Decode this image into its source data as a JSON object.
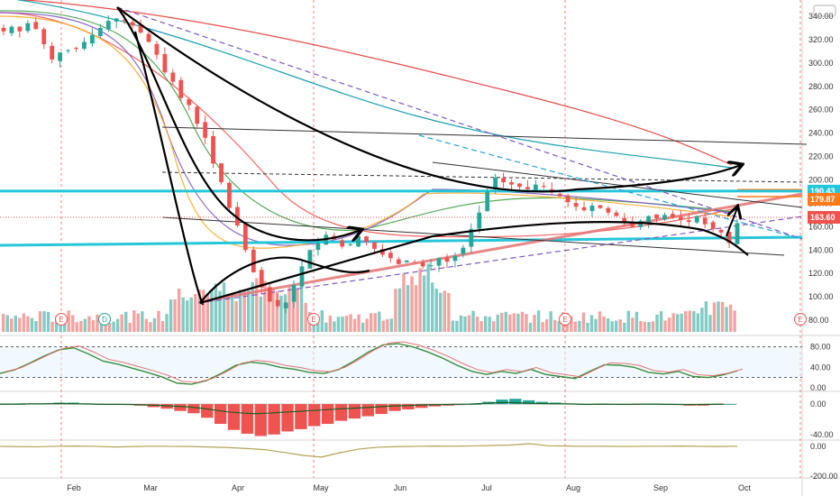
{
  "currency": "USD",
  "chart_data": [
    {
      "type": "candlestick",
      "title": "",
      "ylim": [
        70,
        350
      ],
      "yticks": [
        80,
        100,
        120,
        140,
        160,
        180,
        200,
        220,
        240,
        260,
        280,
        300,
        320,
        340
      ],
      "months": [
        "Feb",
        "Mar",
        "Apr",
        "May",
        "Jun",
        "Jul",
        "Aug",
        "Sep",
        "Oct"
      ],
      "price_tags": [
        {
          "label": "190.43",
          "value": 190.43,
          "color": "#26c6da"
        },
        {
          "label": "179.87",
          "value": 179.87,
          "color": "#ff7a1a"
        },
        {
          "label": "163.60",
          "value": 163.6,
          "color": "#ef5350"
        }
      ],
      "events": [
        "E",
        "D",
        "E",
        "E",
        "E"
      ],
      "close": [
        327,
        331,
        327,
        334,
        329,
        316,
        303,
        309,
        311,
        312,
        318,
        324,
        330,
        336,
        338,
        336,
        332,
        326,
        318,
        307,
        292,
        284,
        270,
        264,
        248,
        236,
        214,
        198,
        176,
        161,
        140,
        121,
        108,
        96,
        92,
        95,
        110,
        126,
        140,
        146,
        153,
        149,
        143,
        145,
        152,
        147,
        141,
        136,
        133,
        128,
        131,
        129,
        126,
        127,
        133,
        130,
        135,
        142,
        158,
        172,
        190,
        202,
        198,
        196,
        194,
        192,
        196,
        194,
        190,
        186,
        181,
        177,
        174,
        178,
        176,
        172,
        169,
        163,
        160,
        165,
        169,
        167,
        170,
        168,
        166,
        164,
        169,
        162,
        158,
        155,
        146,
        163
      ],
      "rsi": {
        "ylim": [
          0,
          95
        ],
        "yticks": [
          80,
          40,
          0
        ],
        "bands": [
          80,
          20
        ],
        "values": [
          28,
          35,
          48,
          62,
          74,
          78,
          66,
          52,
          46,
          38,
          30,
          21,
          9,
          7,
          14,
          28,
          44,
          50,
          47,
          40,
          36,
          30,
          28,
          36,
          52,
          70,
          84,
          86,
          80,
          70,
          58,
          44,
          32,
          26,
          32,
          28,
          36,
          26,
          22,
          18,
          32,
          45,
          44,
          40,
          30,
          27,
          32,
          22,
          20,
          25,
          33
        ]
      },
      "macd": {
        "ylim": [
          -45,
          12
        ],
        "yticks": [
          0,
          -40
        ],
        "histogram": [
          0,
          0,
          1,
          1,
          2,
          2,
          1,
          0,
          -1,
          -1,
          -2,
          -4,
          -6,
          -9,
          -12,
          -18,
          -26,
          -34,
          -39,
          -42,
          -40,
          -36,
          -33,
          -29,
          -26,
          -22,
          -19,
          -16,
          -13,
          -9,
          -7,
          -5,
          -3,
          -2,
          -1,
          0,
          3,
          6,
          7,
          5,
          3,
          2,
          1,
          0,
          -1,
          0,
          -1,
          -1,
          0,
          0,
          -1,
          -2,
          -2,
          -1,
          0
        ]
      },
      "osc": {
        "ylim": [
          -200,
          30
        ],
        "yticks": [
          0,
          -200
        ],
        "values": [
          0,
          -2,
          -3,
          1,
          2,
          0,
          -4,
          -2,
          1,
          0,
          -1,
          -4,
          -8,
          -14,
          -22,
          -40,
          -60,
          -72,
          -42,
          -18,
          -6,
          -2,
          0,
          2,
          1,
          3,
          6,
          9,
          18,
          4,
          2,
          0,
          1,
          -1,
          0,
          1,
          2,
          0,
          -1,
          1
        ]
      }
    }
  ]
}
